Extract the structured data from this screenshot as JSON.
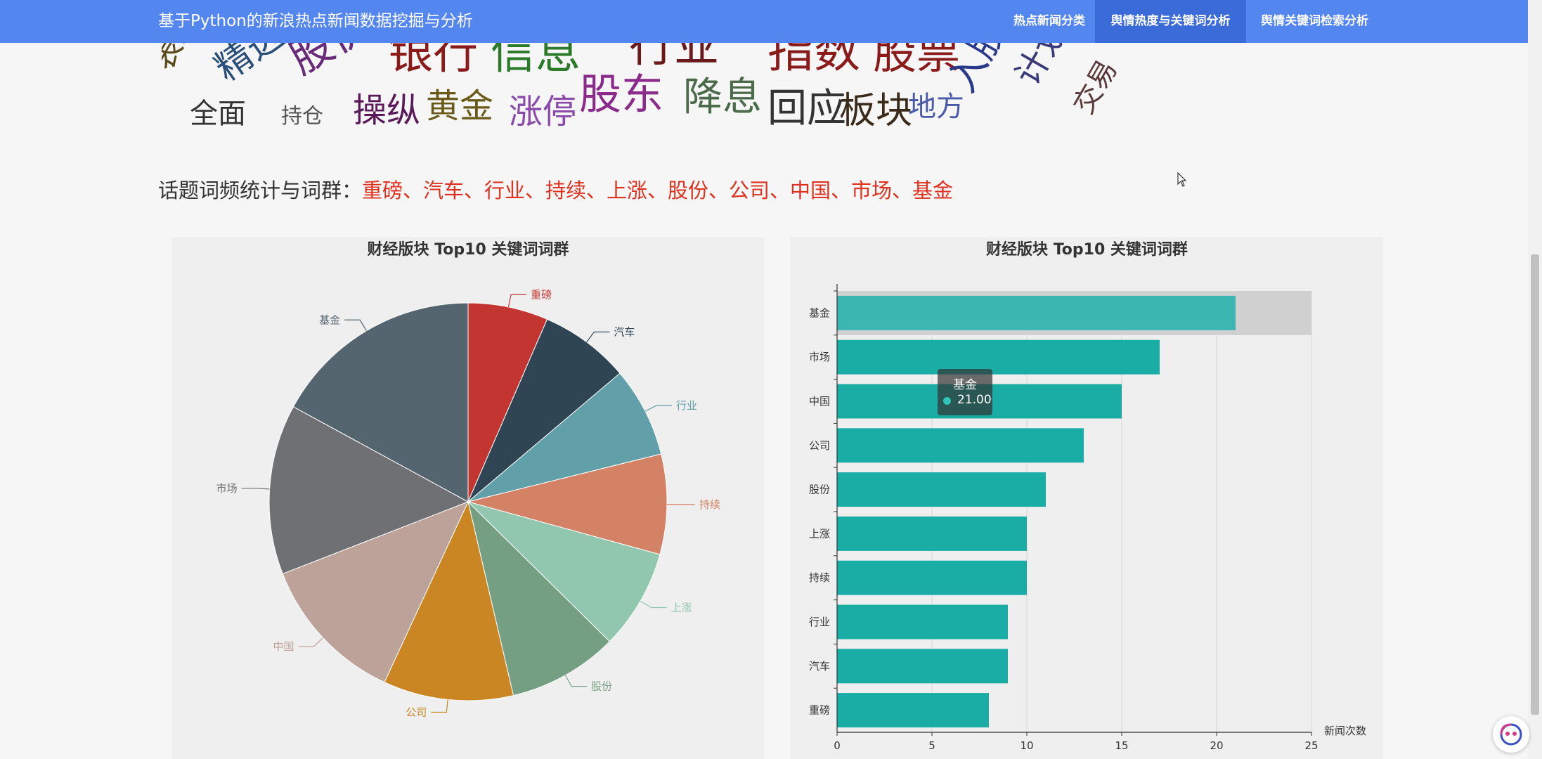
{
  "header": {
    "brand": "基于Python的新浪热点新闻数据挖掘与分析",
    "nav": [
      {
        "label": "热点新闻分类",
        "active": false
      },
      {
        "label": "舆情热度与关键词分析",
        "active": true
      },
      {
        "label": "舆情关键词检索分析",
        "active": false
      }
    ]
  },
  "wordcloud": {
    "words": [
      {
        "text": "表现",
        "color": "#5a4a1a"
      },
      {
        "text": "精选",
        "color": "#2a4f7a"
      },
      {
        "text": "股价",
        "color": "#6a2a7a"
      },
      {
        "text": "银行",
        "color": "#8b1a1a"
      },
      {
        "text": "信息",
        "color": "#2a7a2a"
      },
      {
        "text": "行业",
        "color": "#6a1a1a"
      },
      {
        "text": "指数",
        "color": "#8b1a1a"
      },
      {
        "text": "股票",
        "color": "#8b1a1a"
      },
      {
        "text": "全面",
        "color": "#333333"
      },
      {
        "text": "持仓",
        "color": "#555555"
      },
      {
        "text": "操纵",
        "color": "#5a1a5a"
      },
      {
        "text": "黄金",
        "color": "#6a5a1a"
      },
      {
        "text": "涨停",
        "color": "#8a4aaa"
      },
      {
        "text": "股东",
        "color": "#8a2a8a"
      },
      {
        "text": "降息",
        "color": "#4a6a4a"
      },
      {
        "text": "回应",
        "color": "#333333"
      },
      {
        "text": "板块",
        "color": "#3a2a1a"
      },
      {
        "text": "地方",
        "color": "#4a5aaa"
      },
      {
        "text": "入股",
        "color": "#2a3a8a"
      },
      {
        "text": "计划",
        "color": "#3a3a7a"
      },
      {
        "text": "交易",
        "color": "#5a3a3a"
      }
    ]
  },
  "topic": {
    "label": "话题词频统计与词群：",
    "words": "重磅、汽车、行业、持续、上涨、股份、公司、中国、市场、基金"
  },
  "tooltip": {
    "name": "基金",
    "value": "21.00",
    "color": "#2ec4b6"
  },
  "chart_data": [
    {
      "type": "pie",
      "title": "财经版块 Top10 关键词词群",
      "categories": [
        "重磅",
        "汽车",
        "行业",
        "持续",
        "上涨",
        "股份",
        "公司",
        "中国",
        "市场",
        "基金"
      ],
      "values": [
        8,
        9,
        9,
        10,
        10,
        11,
        13,
        15,
        17,
        21
      ],
      "colors": [
        "#c23531",
        "#2f4554",
        "#61a0a8",
        "#d48265",
        "#91c7ae",
        "#749f83",
        "#ca8622",
        "#bda29a",
        "#6e7074",
        "#546570"
      ]
    },
    {
      "type": "bar",
      "orientation": "horizontal",
      "title": "财经版块 Top10 关键词词群",
      "categories": [
        "重磅",
        "汽车",
        "行业",
        "持续",
        "上涨",
        "股份",
        "公司",
        "中国",
        "市场",
        "基金"
      ],
      "values": [
        8,
        9,
        9,
        10,
        10,
        11,
        13,
        15,
        17,
        21
      ],
      "xlabel": "新闻次数",
      "xlim": [
        0,
        25
      ],
      "xticks": [
        "0",
        "5",
        "10",
        "15",
        "20",
        "25"
      ],
      "color": "#1aada5",
      "highlight_color": "#3bb6b1",
      "highlighted": "基金",
      "grid": true
    }
  ]
}
